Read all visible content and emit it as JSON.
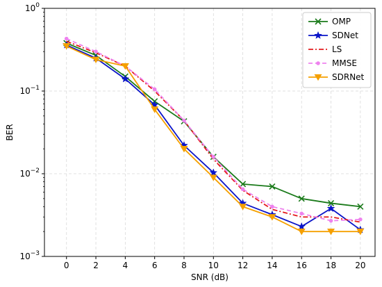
{
  "chart_data": {
    "type": "line",
    "xlabel": "SNR (dB)",
    "ylabel": "BER",
    "x": [
      0,
      2,
      4,
      6,
      8,
      10,
      12,
      14,
      16,
      18,
      20
    ],
    "xlim": [
      -1.5,
      21
    ],
    "ylim": [
      0.001,
      1
    ],
    "yscale": "log",
    "grid": true,
    "legend_position": "top-right",
    "xticks": [
      "0",
      "2",
      "4",
      "6",
      "8",
      "10",
      "12",
      "14",
      "16",
      "18",
      "20"
    ],
    "yticks": [
      {
        "value": 0.001,
        "base": "10",
        "exp": "−3"
      },
      {
        "value": 0.01,
        "base": "10",
        "exp": "−2"
      },
      {
        "value": 0.1,
        "base": "10",
        "exp": "−1"
      },
      {
        "value": 1,
        "base": "10",
        "exp": "0"
      }
    ],
    "series": [
      {
        "name": "OMP",
        "color": "#1a7a1a",
        "dash": "",
        "marker": "x",
        "values": [
          0.38,
          0.27,
          0.15,
          0.075,
          0.043,
          0.016,
          0.0075,
          0.007,
          0.005,
          0.0044,
          0.004
        ]
      },
      {
        "name": "SDNet",
        "color": "#0a14c8",
        "dash": "",
        "marker": "star",
        "values": [
          0.36,
          0.25,
          0.14,
          0.068,
          0.022,
          0.0103,
          0.0044,
          0.0032,
          0.0023,
          0.0038,
          0.0021
        ]
      },
      {
        "name": "LS",
        "color": "#e41a1c",
        "dash": "7,3,2,3",
        "marker": "none",
        "values": [
          0.4,
          0.29,
          0.2,
          0.1,
          0.044,
          0.015,
          0.0063,
          0.0037,
          0.003,
          0.003,
          0.0026
        ]
      },
      {
        "name": "MMSE",
        "color": "#ee82ee",
        "dash": "6,4",
        "marker": "circle",
        "values": [
          0.43,
          0.3,
          0.2,
          0.105,
          0.044,
          0.016,
          0.0065,
          0.004,
          0.0033,
          0.0027,
          0.0028
        ]
      },
      {
        "name": "SDRNet",
        "color": "#f5a000",
        "dash": "",
        "marker": "triangle",
        "values": [
          0.35,
          0.24,
          0.2,
          0.06,
          0.02,
          0.009,
          0.004,
          0.003,
          0.002,
          0.002,
          0.002
        ]
      }
    ]
  }
}
